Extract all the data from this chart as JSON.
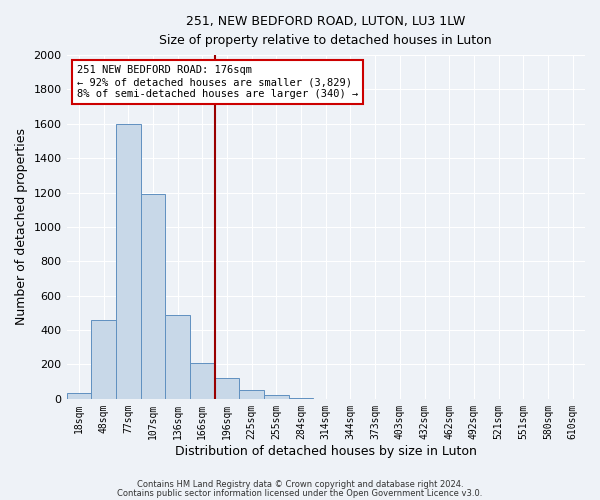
{
  "title": "251, NEW BEDFORD ROAD, LUTON, LU3 1LW",
  "subtitle": "Size of property relative to detached houses in Luton",
  "xlabel": "Distribution of detached houses by size in Luton",
  "ylabel": "Number of detached properties",
  "bar_labels": [
    "18sqm",
    "48sqm",
    "77sqm",
    "107sqm",
    "136sqm",
    "166sqm",
    "196sqm",
    "225sqm",
    "255sqm",
    "284sqm",
    "314sqm",
    "344sqm",
    "373sqm",
    "403sqm",
    "432sqm",
    "462sqm",
    "492sqm",
    "521sqm",
    "551sqm",
    "580sqm",
    "610sqm"
  ],
  "bar_values": [
    35,
    460,
    1600,
    1190,
    490,
    210,
    120,
    50,
    20,
    5,
    0,
    0,
    0,
    0,
    0,
    0,
    0,
    0,
    0,
    0,
    0
  ],
  "bar_color": "#c8d8e8",
  "bar_edge_color": "#6090c0",
  "vline_x": 5.5,
  "vline_color": "#990000",
  "annotation_line1": "251 NEW BEDFORD ROAD: 176sqm",
  "annotation_line2": "← 92% of detached houses are smaller (3,829)",
  "annotation_line3": "8% of semi-detached houses are larger (340) →",
  "annotation_box_color": "#ffffff",
  "annotation_box_edge_color": "#cc0000",
  "ylim": [
    0,
    2000
  ],
  "yticks": [
    0,
    200,
    400,
    600,
    800,
    1000,
    1200,
    1400,
    1600,
    1800,
    2000
  ],
  "bg_color": "#eef2f7",
  "grid_color": "#ffffff",
  "footer_line1": "Contains HM Land Registry data © Crown copyright and database right 2024.",
  "footer_line2": "Contains public sector information licensed under the Open Government Licence v3.0."
}
